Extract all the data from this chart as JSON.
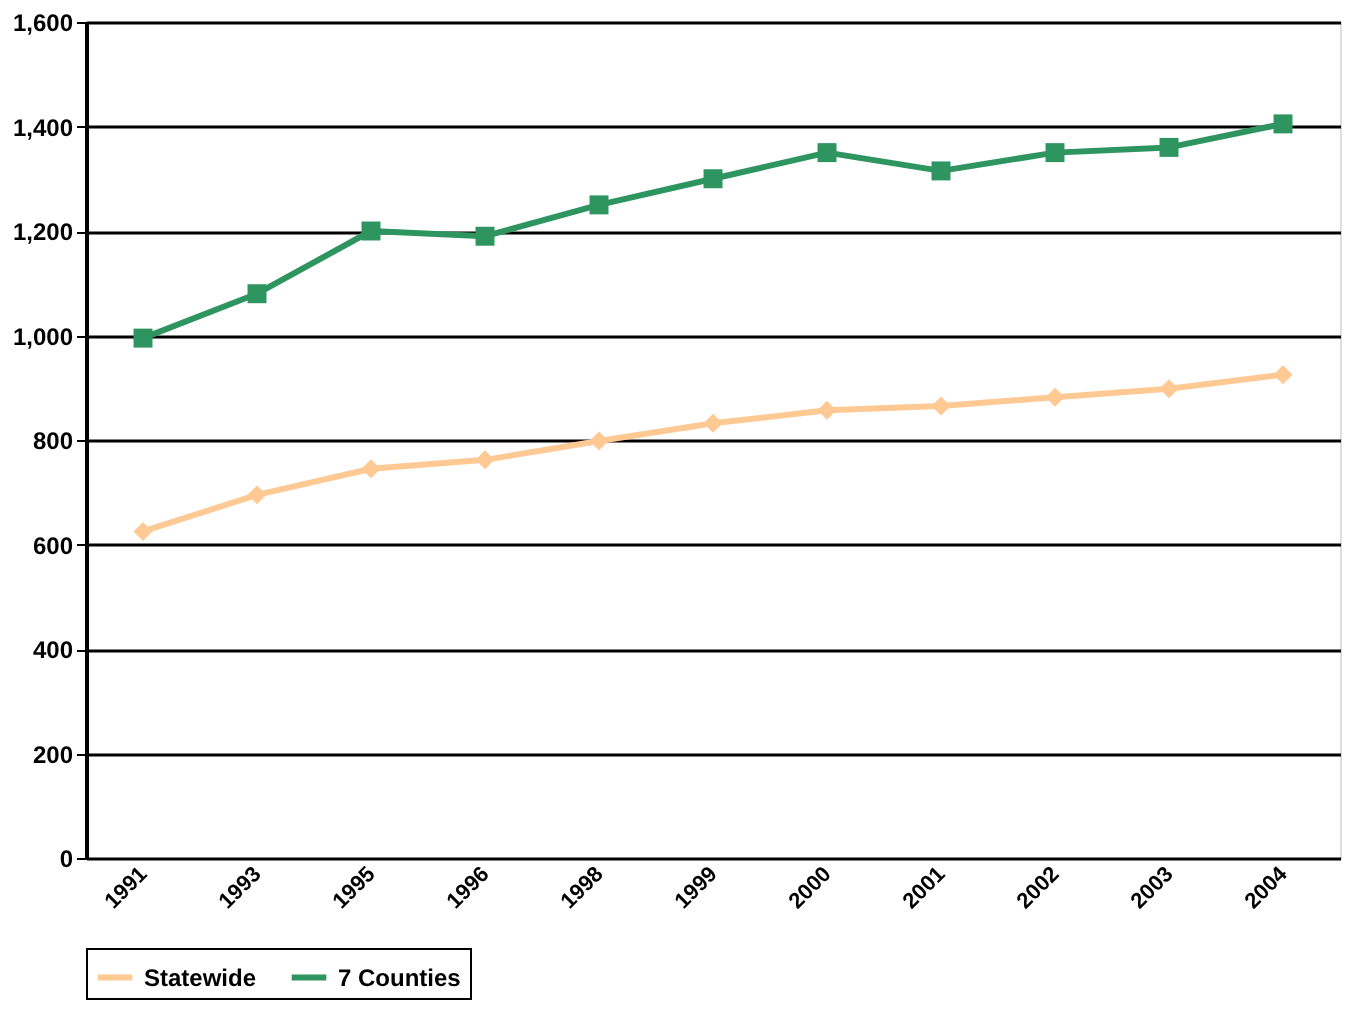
{
  "chart_data": {
    "type": "line",
    "categories": [
      "1991",
      "1993",
      "1995",
      "1996",
      "1998",
      "1999",
      "2000",
      "2001",
      "2002",
      "2003",
      "2004"
    ],
    "series": [
      {
        "name": "Statewide",
        "color": "#ffc994",
        "marker": "diamond",
        "values": [
          625,
          695,
          745,
          762,
          798,
          832,
          857,
          865,
          882,
          898,
          925
        ]
      },
      {
        "name": "7 Counties",
        "color": "#2e9561",
        "marker": "square",
        "values": [
          995,
          1080,
          1200,
          1190,
          1250,
          1300,
          1350,
          1315,
          1350,
          1360,
          1405
        ]
      }
    ],
    "ylim": [
      0,
      1600
    ],
    "yticks": [
      {
        "value": 0,
        "label": "0"
      },
      {
        "value": 200,
        "label": "200"
      },
      {
        "value": 400,
        "label": "400"
      },
      {
        "value": 600,
        "label": "600"
      },
      {
        "value": 800,
        "label": "800"
      },
      {
        "value": 1000,
        "label": "1,000"
      },
      {
        "value": 1200,
        "label": "1,200"
      },
      {
        "value": 1400,
        "label": "1,400"
      },
      {
        "value": 1600,
        "label": "1,600"
      }
    ],
    "grid": "y",
    "legend": "bottom",
    "line_style": "solid"
  }
}
